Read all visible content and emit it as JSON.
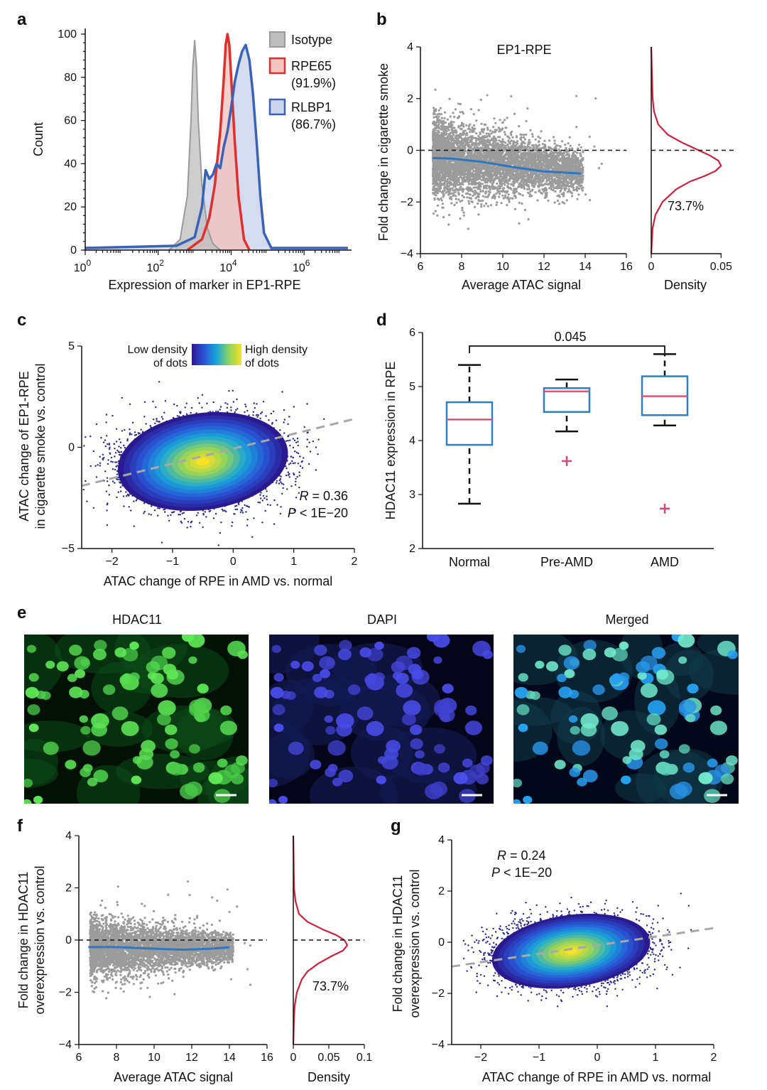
{
  "colors": {
    "isotype": "#9a9a9a",
    "rpe65": "#e0302e",
    "rlbp1": "#3a63b8",
    "trend": "#2f78c0",
    "density_line": "#d0203e",
    "box": "#2f7fc1",
    "median": "#e0507a",
    "outlier": "#d64a7a",
    "gray_points": "#9b9b9b"
  },
  "panels": {
    "a": {
      "letter": "a"
    },
    "b": {
      "letter": "b"
    },
    "c": {
      "letter": "c"
    },
    "d": {
      "letter": "d"
    },
    "e": {
      "letter": "e"
    },
    "f": {
      "letter": "f"
    },
    "g": {
      "letter": "g"
    }
  },
  "chart_data": [
    {
      "id": "a",
      "type": "area",
      "xlabel": "Expression of marker in EP1-RPE",
      "ylabel": "Count",
      "x_scale": "log10",
      "x_ticks": [
        "10",
        "10",
        "10",
        "10"
      ],
      "x_tick_exponents": [
        "0",
        "2",
        "4",
        "6"
      ],
      "y_ticks": [
        "0",
        "20",
        "40",
        "60",
        "80",
        "100"
      ],
      "ylim": [
        0,
        100
      ],
      "legend": {
        "position": "top-right",
        "items": [
          {
            "name": "Isotype",
            "pct": ""
          },
          {
            "name": "RPE65",
            "pct": "(91.9%)"
          },
          {
            "name": "RLBP1",
            "pct": "(86.7%)"
          }
        ]
      },
      "series": [
        {
          "name": "Isotype",
          "log_x": [
            2.3,
            2.6,
            2.8,
            2.9,
            2.95,
            3.0,
            3.05,
            3.1,
            3.2,
            3.35,
            3.5,
            3.7
          ],
          "values": [
            0,
            5,
            25,
            60,
            85,
            97,
            85,
            60,
            30,
            10,
            3,
            0
          ]
        },
        {
          "name": "RPE65",
          "log_x": [
            2.8,
            3.2,
            3.4,
            3.55,
            3.7,
            3.8,
            3.85,
            3.9,
            3.95,
            4.0,
            4.1,
            4.2,
            4.35,
            4.5
          ],
          "values": [
            0,
            5,
            15,
            30,
            55,
            80,
            95,
            100,
            95,
            80,
            50,
            25,
            5,
            0
          ]
        },
        {
          "name": "RLBP1",
          "log_x": [
            0.0,
            2.5,
            3.0,
            3.2,
            3.3,
            3.4,
            3.5,
            3.6,
            3.7,
            3.8,
            3.9,
            4.0,
            4.1,
            4.2,
            4.3,
            4.4,
            4.5,
            4.6,
            4.7,
            4.8,
            4.9,
            5.1,
            7.2
          ],
          "values": [
            1,
            2,
            6,
            20,
            37,
            33,
            35,
            40,
            38,
            48,
            55,
            66,
            78,
            86,
            92,
            95,
            88,
            72,
            50,
            25,
            8,
            1,
            1
          ]
        }
      ]
    },
    {
      "id": "b",
      "type": "scatter",
      "title": "EP1-RPE",
      "xlabel": "Average ATAC signal",
      "ylabel": "Fold change in cigarette smoke",
      "x_ticks": [
        "6",
        "8",
        "10",
        "12",
        "14",
        "16"
      ],
      "y_ticks": [
        "−4",
        "−2",
        "0",
        "2",
        "4"
      ],
      "xlim": [
        6,
        16
      ],
      "ylim": [
        -4,
        4
      ],
      "trend": {
        "x": [
          6.6,
          7.5,
          9,
          10.5,
          12,
          13.8
        ],
        "y": [
          -0.3,
          -0.32,
          -0.45,
          -0.65,
          -0.82,
          -0.9
        ]
      },
      "density": {
        "xlabel": "Density",
        "x_ticks": [
          "0",
          "0.05"
        ],
        "xlim": [
          0,
          0.06
        ],
        "annotation": "73.7%",
        "y": [
          -4,
          -3,
          -2.5,
          -2,
          -1.5,
          -1.2,
          -1.0,
          -0.8,
          -0.6,
          -0.4,
          -0.2,
          0,
          0.3,
          0.6,
          1.0,
          1.5,
          2,
          3,
          4
        ],
        "values": [
          0,
          0.001,
          0.003,
          0.008,
          0.018,
          0.028,
          0.038,
          0.046,
          0.05,
          0.048,
          0.042,
          0.034,
          0.022,
          0.012,
          0.005,
          0.002,
          0.001,
          0.0005,
          0
        ]
      }
    },
    {
      "id": "c",
      "type": "scatter",
      "xlabel": "ATAC change of RPE in AMD vs. normal",
      "ylabel_line1": "ATAC change of EP1-RPE",
      "ylabel_line2": "in cigarette smoke vs. control",
      "x_ticks": [
        "−2",
        "−1",
        "0",
        "1",
        "2"
      ],
      "y_ticks": [
        "−5",
        "0",
        "5"
      ],
      "xlim": [
        -2.5,
        2
      ],
      "ylim": [
        -5,
        5
      ],
      "colorbar": {
        "low_line1": "Low density",
        "low_line2": "of dots",
        "high_line1": "High density",
        "high_line2": "of dots"
      },
      "stats": {
        "r_label": "R",
        "r_value": " = 0.36",
        "p_label": "P",
        "p_value": " < 1E−20"
      },
      "center": [
        -0.5,
        -0.7
      ],
      "fit": {
        "x": [
          -2.5,
          2
        ],
        "y": [
          -1.9,
          1.4
        ]
      }
    },
    {
      "id": "d",
      "type": "box",
      "ylabel": "HDAC11 expression in RPE",
      "categories": [
        "Normal",
        "Pre-AMD",
        "AMD"
      ],
      "y_ticks": [
        "2",
        "3",
        "4",
        "5",
        "6"
      ],
      "ylim": [
        2,
        6
      ],
      "boxes": [
        {
          "min": 2.83,
          "q1": 3.92,
          "median": 4.39,
          "q3": 4.71,
          "max": 5.4,
          "outliers": []
        },
        {
          "min": 4.17,
          "q1": 4.53,
          "median": 4.91,
          "q3": 4.97,
          "max": 5.13,
          "outliers": [
            3.62
          ]
        },
        {
          "min": 4.28,
          "q1": 4.47,
          "median": 4.82,
          "q3": 5.19,
          "max": 5.6,
          "outliers": [
            2.74
          ]
        }
      ],
      "significance": {
        "from": "Normal",
        "to": "AMD",
        "y": 5.75,
        "label": "0.045"
      }
    },
    {
      "id": "f",
      "type": "scatter",
      "xlabel": "Average ATAC signal",
      "ylabel_line1": "Fold change in HDAC11",
      "ylabel_line2": "overexpression vs. control",
      "x_ticks": [
        "6",
        "8",
        "10",
        "12",
        "14",
        "16"
      ],
      "y_ticks": [
        "−4",
        "−2",
        "0",
        "2",
        "4"
      ],
      "xlim": [
        6,
        16
      ],
      "ylim": [
        -4,
        4
      ],
      "trend": {
        "x": [
          6.5,
          8,
          10,
          11.5,
          13,
          14
        ],
        "y": [
          -0.27,
          -0.27,
          -0.33,
          -0.37,
          -0.33,
          -0.28
        ]
      },
      "density": {
        "xlabel": "Density",
        "x_ticks": [
          "0",
          "0.05",
          "0.1"
        ],
        "xlim": [
          0,
          0.1
        ],
        "annotation": "73.7%",
        "y": [
          -4,
          -3,
          -2.5,
          -2,
          -1.5,
          -1.2,
          -0.9,
          -0.6,
          -0.4,
          -0.2,
          0,
          0.2,
          0.4,
          0.7,
          1.0,
          1.5,
          2,
          3,
          4
        ],
        "values": [
          0,
          0.001,
          0.002,
          0.005,
          0.012,
          0.02,
          0.035,
          0.055,
          0.07,
          0.076,
          0.072,
          0.06,
          0.042,
          0.02,
          0.008,
          0.003,
          0.001,
          0.0005,
          0
        ]
      }
    },
    {
      "id": "g",
      "type": "scatter",
      "xlabel": "ATAC change of RPE in AMD vs. normal",
      "ylabel_line1": "Fold change in HDAC11",
      "ylabel_line2": "overexpression vs. control",
      "x_ticks": [
        "−2",
        "−1",
        "0",
        "1",
        "2"
      ],
      "y_ticks": [
        "−4",
        "−2",
        "0",
        "2",
        "4"
      ],
      "xlim": [
        -2.5,
        2
      ],
      "ylim": [
        -4,
        4
      ],
      "stats": {
        "r_label": "R",
        "r_value": " = 0.24",
        "p_label": "P",
        "p_value": " < 1E−20"
      },
      "center": [
        -0.45,
        -0.35
      ],
      "fit": {
        "x": [
          -2.5,
          2
        ],
        "y": [
          -0.95,
          0.55
        ]
      }
    }
  ],
  "micrographs": [
    {
      "title": "HDAC11",
      "channel": "green"
    },
    {
      "title": "DAPI",
      "channel": "blue"
    },
    {
      "title": "Merged",
      "channel": "merged"
    }
  ]
}
